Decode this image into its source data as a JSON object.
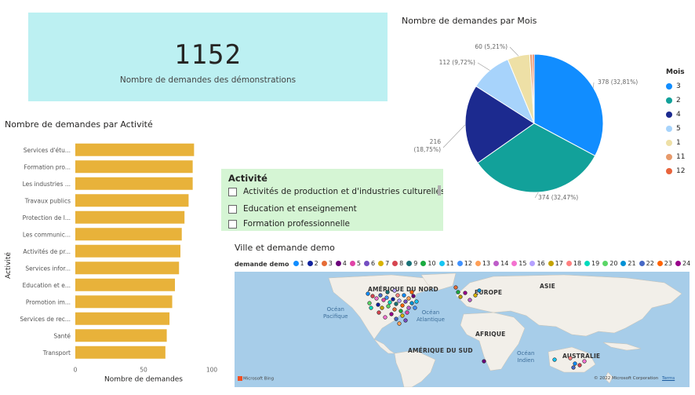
{
  "kpi": {
    "value": "1152",
    "label": "Nombre de demandes des démonstrations"
  },
  "bar_visual": {
    "title": "Nombre de demandes par Activité",
    "bar_color": "#e8b23a"
  },
  "pie_visual": {
    "title": "Nombre de demandes par Mois",
    "legend_title": "Mois",
    "legend": [
      {
        "label": "3",
        "color": "#118dff"
      },
      {
        "label": "2",
        "color": "#12a19a"
      },
      {
        "label": "4",
        "color": "#1c2a8f"
      },
      {
        "label": "5",
        "color": "#a7d3fb"
      },
      {
        "label": "1",
        "color": "#eee0a6"
      },
      {
        "label": "11",
        "color": "#e79a6b"
      },
      {
        "label": "12",
        "color": "#e8643c"
      }
    ]
  },
  "slicer": {
    "title": "Activité",
    "items": [
      "Activités de production et d'industries culturelles",
      "Education et enseignement",
      "Formation professionnelle"
    ]
  },
  "map_visual": {
    "title": "Ville et demande demo",
    "legend_title": "demande demo",
    "legend_items": [
      {
        "label": "1",
        "color": "#118dff"
      },
      {
        "label": "2",
        "color": "#12239e"
      },
      {
        "label": "3",
        "color": "#e66c37"
      },
      {
        "label": "4",
        "color": "#6b007b"
      },
      {
        "label": "5",
        "color": "#e044a7"
      },
      {
        "label": "6",
        "color": "#744ec2"
      },
      {
        "label": "7",
        "color": "#d9b300"
      },
      {
        "label": "8",
        "color": "#d64550"
      },
      {
        "label": "9",
        "color": "#197278"
      },
      {
        "label": "10",
        "color": "#1aab40"
      },
      {
        "label": "11",
        "color": "#15c6f4"
      },
      {
        "label": "12",
        "color": "#4092ff"
      },
      {
        "label": "13",
        "color": "#ffa058"
      },
      {
        "label": "14",
        "color": "#be5dc9"
      },
      {
        "label": "15",
        "color": "#f472d0"
      },
      {
        "label": "16",
        "color": "#b5a1ff"
      },
      {
        "label": "17",
        "color": "#c4a200"
      },
      {
        "label": "18",
        "color": "#ff8080"
      },
      {
        "label": "19",
        "color": "#00dbbc"
      },
      {
        "label": "20",
        "color": "#5bd667"
      },
      {
        "label": "21",
        "color": "#0091d5"
      },
      {
        "label": "22",
        "color": "#4668c5"
      },
      {
        "label": "23",
        "color": "#ff6300"
      },
      {
        "label": "24",
        "color": "#99008a"
      }
    ],
    "more_icon": "chevron-right-icon",
    "regions": {
      "north_america": "AMÉRIQUE DU NORD",
      "europe": "EUROPE",
      "asia": "ASIE",
      "africa": "AFRIQUE",
      "south_america": "AMÉRIQUE DU SUD",
      "australia": "AUSTRALIE"
    },
    "oceans": {
      "pacific": "Océan\nPacifique",
      "atlantic": "Océan\nAtlantique",
      "indian": "Océan\nIndien"
    },
    "footer_left": "Microsoft Bing",
    "footer_right": "© 2022 Microsoft Corporation",
    "footer_terms": "Terms"
  },
  "chart_data": [
    {
      "type": "bar",
      "orientation": "horizontal",
      "title": "Nombre de demandes par Activité",
      "categories": [
        "Services d'étu...",
        "Formation pro...",
        "Les industries ...",
        "Travaux publics",
        "Protection de l...",
        "Les communic...",
        "Activités de pr...",
        "Services infor...",
        "Education et e...",
        "Promotion im...",
        "Services de rec...",
        "Santé",
        "Transport"
      ],
      "values": [
        87,
        86,
        86,
        83,
        80,
        78,
        77,
        76,
        73,
        71,
        69,
        67,
        66
      ],
      "xlabel": "Nombre de demandes",
      "ylabel": "Activité",
      "xlim": [
        0,
        100
      ],
      "xticks": [
        "0",
        "50",
        "100"
      ]
    },
    {
      "type": "pie",
      "title": "Nombre de demandes par Mois",
      "slices": [
        {
          "label": "3",
          "value": 378,
          "text": "378 (32,81%)",
          "color": "#118dff"
        },
        {
          "label": "2",
          "value": 374,
          "text": "374 (32,47%)",
          "color": "#12a19a"
        },
        {
          "label": "4",
          "value": 216,
          "text": "216\n(18,75%)",
          "color": "#1c2a8f"
        },
        {
          "label": "5",
          "value": 112,
          "text": "112 (9,72%)",
          "color": "#a7d3fb"
        },
        {
          "label": "1",
          "value": 60,
          "text": "60 (5,21%)",
          "color": "#eee0a6"
        },
        {
          "label": "11",
          "value": 7,
          "text": "",
          "color": "#e79a6b"
        },
        {
          "label": "12",
          "value": 5,
          "text": "",
          "color": "#e8643c"
        }
      ]
    }
  ]
}
